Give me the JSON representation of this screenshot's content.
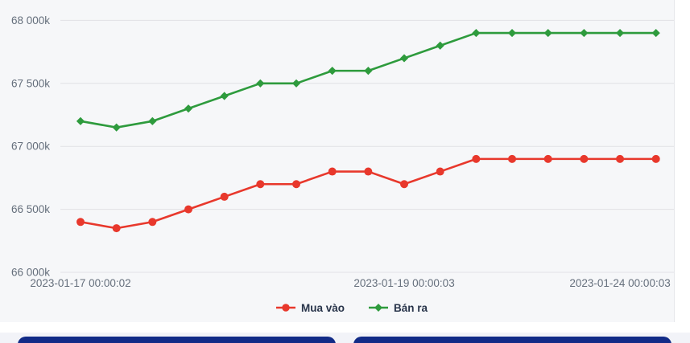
{
  "page": {
    "background": "#ffffff"
  },
  "chart_card": {
    "background": "#f6f7f9",
    "gridline_color": "#e1e2e6",
    "tick_label_color": "#656f7c"
  },
  "chart_data": {
    "type": "line",
    "title": "",
    "xlabel": "",
    "ylabel": "",
    "grid": "horizontal",
    "legend_position": "bottom",
    "ylim": [
      66000,
      68000
    ],
    "y_ticks": [
      66000,
      66500,
      67000,
      67500,
      68000
    ],
    "y_tick_labels": [
      "66 000k",
      "66 500k",
      "67 000k",
      "67 500k",
      "68 000k"
    ],
    "num_points": 17,
    "x_tick_labels": [
      {
        "index": 0,
        "label": "2023-01-17 00:00:02"
      },
      {
        "index": 9,
        "label": "2023-01-19 00:00:03"
      },
      {
        "index": 15,
        "label": "2023-01-24 00:00:03"
      }
    ],
    "series": [
      {
        "name": "Mua vào",
        "color": "#e8382c",
        "marker": "circle",
        "values": [
          66400,
          66350,
          66400,
          66500,
          66600,
          66700,
          66700,
          66800,
          66800,
          66700,
          66800,
          66900,
          66900,
          66900,
          66900,
          66900,
          66900
        ]
      },
      {
        "name": "Bán ra",
        "color": "#2e9b3d",
        "marker": "diamond",
        "values": [
          67200,
          67150,
          67200,
          67300,
          67400,
          67500,
          67500,
          67600,
          67600,
          67700,
          67800,
          67900,
          67900,
          67900,
          67900,
          67900,
          67900
        ]
      }
    ]
  },
  "bottom_bar": {
    "background": "#f2f3f8",
    "button_color": "#122b87"
  }
}
